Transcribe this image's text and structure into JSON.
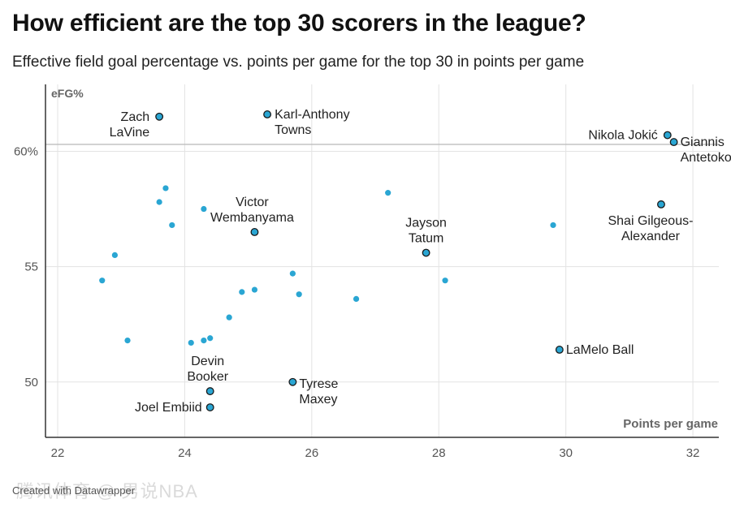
{
  "header": {
    "title": "How efficient are the top 30 scorers in the league?",
    "subtitle": "Effective field goal percentage vs. points per game for the top 30 in points per game"
  },
  "footer": {
    "credit": "Created with Datawrapper",
    "watermark": "腾讯体育 @ 男说NBA"
  },
  "colors": {
    "dot": "#2aa6d3",
    "dot_highlight": "#2aa6d3",
    "outline": "#1a1a1a",
    "grid": "#e3e3e3",
    "reference_line": "#bdbdbd",
    "axis": "#333333"
  },
  "chart_data": {
    "type": "scatter",
    "xlabel": "Points per game",
    "ylabel": "eFG%",
    "xlim": [
      22,
      32.6
    ],
    "ylim": [
      47.6,
      62.9
    ],
    "x_ticks": [
      22,
      24,
      26,
      28,
      30,
      32
    ],
    "x_tick_labels": [
      "22",
      "24",
      "26",
      "28",
      "30",
      "32"
    ],
    "y_ticks": [
      50,
      55,
      60
    ],
    "y_tick_labels": [
      "50",
      "55",
      "60%"
    ],
    "reference_line_y": 60.3,
    "grid": true,
    "labeled_points": [
      {
        "label": "Zach\nLaVine",
        "x": 23.6,
        "y": 61.5
      },
      {
        "label": "Karl-Anthony\nTowns",
        "x": 25.3,
        "y": 61.6
      },
      {
        "label": "Nikola Jokić",
        "x": 31.6,
        "y": 60.7
      },
      {
        "label": "Giannis\nAntetokounmpo",
        "x": 31.7,
        "y": 60.4
      },
      {
        "label": "Victor\nWembanyama",
        "x": 25.1,
        "y": 56.5
      },
      {
        "label": "Jayson\nTatum",
        "x": 27.8,
        "y": 55.6
      },
      {
        "label": "Shai Gilgeous-\nAlexander",
        "x": 31.5,
        "y": 57.7
      },
      {
        "label": "LaMelo Ball",
        "x": 29.9,
        "y": 51.4
      },
      {
        "label": "Devin\nBooker",
        "x": 24.4,
        "y": 49.6
      },
      {
        "label": "Tyrese\nMaxey",
        "x": 25.7,
        "y": 50.0
      },
      {
        "label": "Joel Embiid",
        "x": 24.4,
        "y": 48.9
      }
    ],
    "unlabeled_points": [
      {
        "x": 23.7,
        "y": 58.4
      },
      {
        "x": 23.6,
        "y": 57.8
      },
      {
        "x": 24.3,
        "y": 57.5
      },
      {
        "x": 23.8,
        "y": 56.8
      },
      {
        "x": 22.9,
        "y": 55.5
      },
      {
        "x": 22.7,
        "y": 54.4
      },
      {
        "x": 23.1,
        "y": 51.8
      },
      {
        "x": 24.1,
        "y": 51.7
      },
      {
        "x": 24.3,
        "y": 51.8
      },
      {
        "x": 24.4,
        "y": 51.9
      },
      {
        "x": 24.7,
        "y": 52.8
      },
      {
        "x": 24.9,
        "y": 53.9
      },
      {
        "x": 25.1,
        "y": 54.0
      },
      {
        "x": 25.7,
        "y": 54.7
      },
      {
        "x": 25.8,
        "y": 53.8
      },
      {
        "x": 26.7,
        "y": 53.6
      },
      {
        "x": 27.2,
        "y": 58.2
      },
      {
        "x": 28.1,
        "y": 54.4
      },
      {
        "x": 29.8,
        "y": 56.8
      }
    ]
  }
}
